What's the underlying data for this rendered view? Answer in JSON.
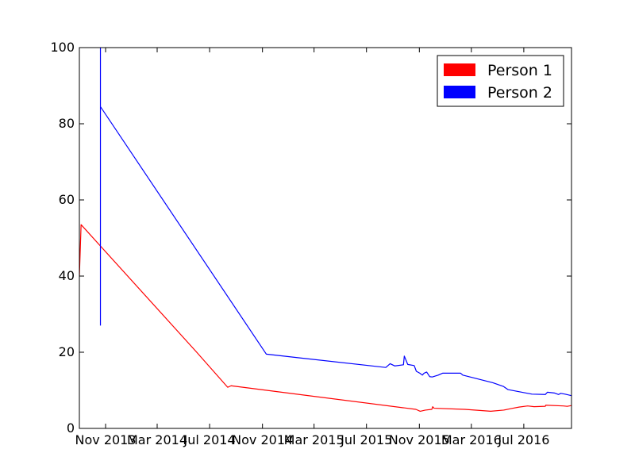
{
  "chart_data": {
    "type": "line",
    "x_type": "date",
    "xlim": [
      "2013-09-01",
      "2016-10-20"
    ],
    "ylim": [
      0,
      100
    ],
    "xticks": [
      {
        "date": "2013-11-01",
        "label": "Nov 2013"
      },
      {
        "date": "2014-03-01",
        "label": "Mar 2014"
      },
      {
        "date": "2014-07-01",
        "label": "Jul 2014"
      },
      {
        "date": "2014-11-01",
        "label": "Nov 2014"
      },
      {
        "date": "2015-03-01",
        "label": "Mar 2015"
      },
      {
        "date": "2015-07-01",
        "label": "Jul 2015"
      },
      {
        "date": "2015-11-01",
        "label": "Nov 2015"
      },
      {
        "date": "2016-03-01",
        "label": "Mar 2016"
      },
      {
        "date": "2016-07-01",
        "label": "Jul 2016"
      }
    ],
    "yticks": [
      0,
      20,
      40,
      60,
      80,
      100
    ],
    "grid": false,
    "legend": "top-right",
    "series": [
      {
        "name": "Person 1",
        "color": "#ff0000",
        "points": [
          [
            "2013-09-01",
            40.0
          ],
          [
            "2013-09-05",
            53.5
          ],
          [
            "2014-06-01",
            20.0
          ],
          [
            "2014-08-12",
            10.8
          ],
          [
            "2014-08-20",
            11.2
          ],
          [
            "2015-10-24",
            5.0
          ],
          [
            "2015-11-03",
            4.5
          ],
          [
            "2015-11-15",
            4.8
          ],
          [
            "2015-11-30",
            5.0
          ],
          [
            "2015-12-02",
            5.7
          ],
          [
            "2015-12-05",
            5.3
          ],
          [
            "2016-02-15",
            5.0
          ],
          [
            "2016-04-15",
            4.5
          ],
          [
            "2016-05-15",
            4.8
          ],
          [
            "2016-06-01",
            5.2
          ],
          [
            "2016-06-20",
            5.6
          ],
          [
            "2016-07-10",
            5.9
          ],
          [
            "2016-07-25",
            5.7
          ],
          [
            "2016-08-20",
            5.8
          ],
          [
            "2016-08-21",
            6.1
          ],
          [
            "2016-10-01",
            5.9
          ],
          [
            "2016-10-10",
            5.8
          ],
          [
            "2016-10-20",
            6.0
          ]
        ]
      },
      {
        "name": "Person 2",
        "color": "#0000ff",
        "points": [
          [
            "2013-10-20",
            27.0
          ],
          [
            "2013-10-20",
            100.0
          ],
          [
            "2013-10-20",
            84.5
          ],
          [
            "2014-11-10",
            19.5
          ],
          [
            "2015-08-15",
            16.0
          ],
          [
            "2015-08-25",
            17.0
          ],
          [
            "2015-09-05",
            16.4
          ],
          [
            "2015-09-25",
            16.7
          ],
          [
            "2015-09-27",
            19.0
          ],
          [
            "2015-10-05",
            16.8
          ],
          [
            "2015-10-20",
            16.5
          ],
          [
            "2015-10-25",
            15.0
          ],
          [
            "2015-11-02",
            14.5
          ],
          [
            "2015-11-08",
            14.0
          ],
          [
            "2015-11-12",
            14.5
          ],
          [
            "2015-11-18",
            14.8
          ],
          [
            "2015-11-25",
            13.6
          ],
          [
            "2015-12-01",
            13.5
          ],
          [
            "2015-12-15",
            14.0
          ],
          [
            "2015-12-25",
            14.5
          ],
          [
            "2016-02-05",
            14.5
          ],
          [
            "2016-02-10",
            14.0
          ],
          [
            "2016-04-20",
            12.0
          ],
          [
            "2016-05-15",
            11.0
          ],
          [
            "2016-05-25",
            10.2
          ],
          [
            "2016-07-20",
            9.0
          ],
          [
            "2016-08-20",
            8.9
          ],
          [
            "2016-08-25",
            9.5
          ],
          [
            "2016-09-10",
            9.3
          ],
          [
            "2016-09-20",
            8.9
          ],
          [
            "2016-09-25",
            9.2
          ],
          [
            "2016-10-05",
            9.0
          ],
          [
            "2016-10-20",
            8.6
          ]
        ]
      }
    ]
  }
}
